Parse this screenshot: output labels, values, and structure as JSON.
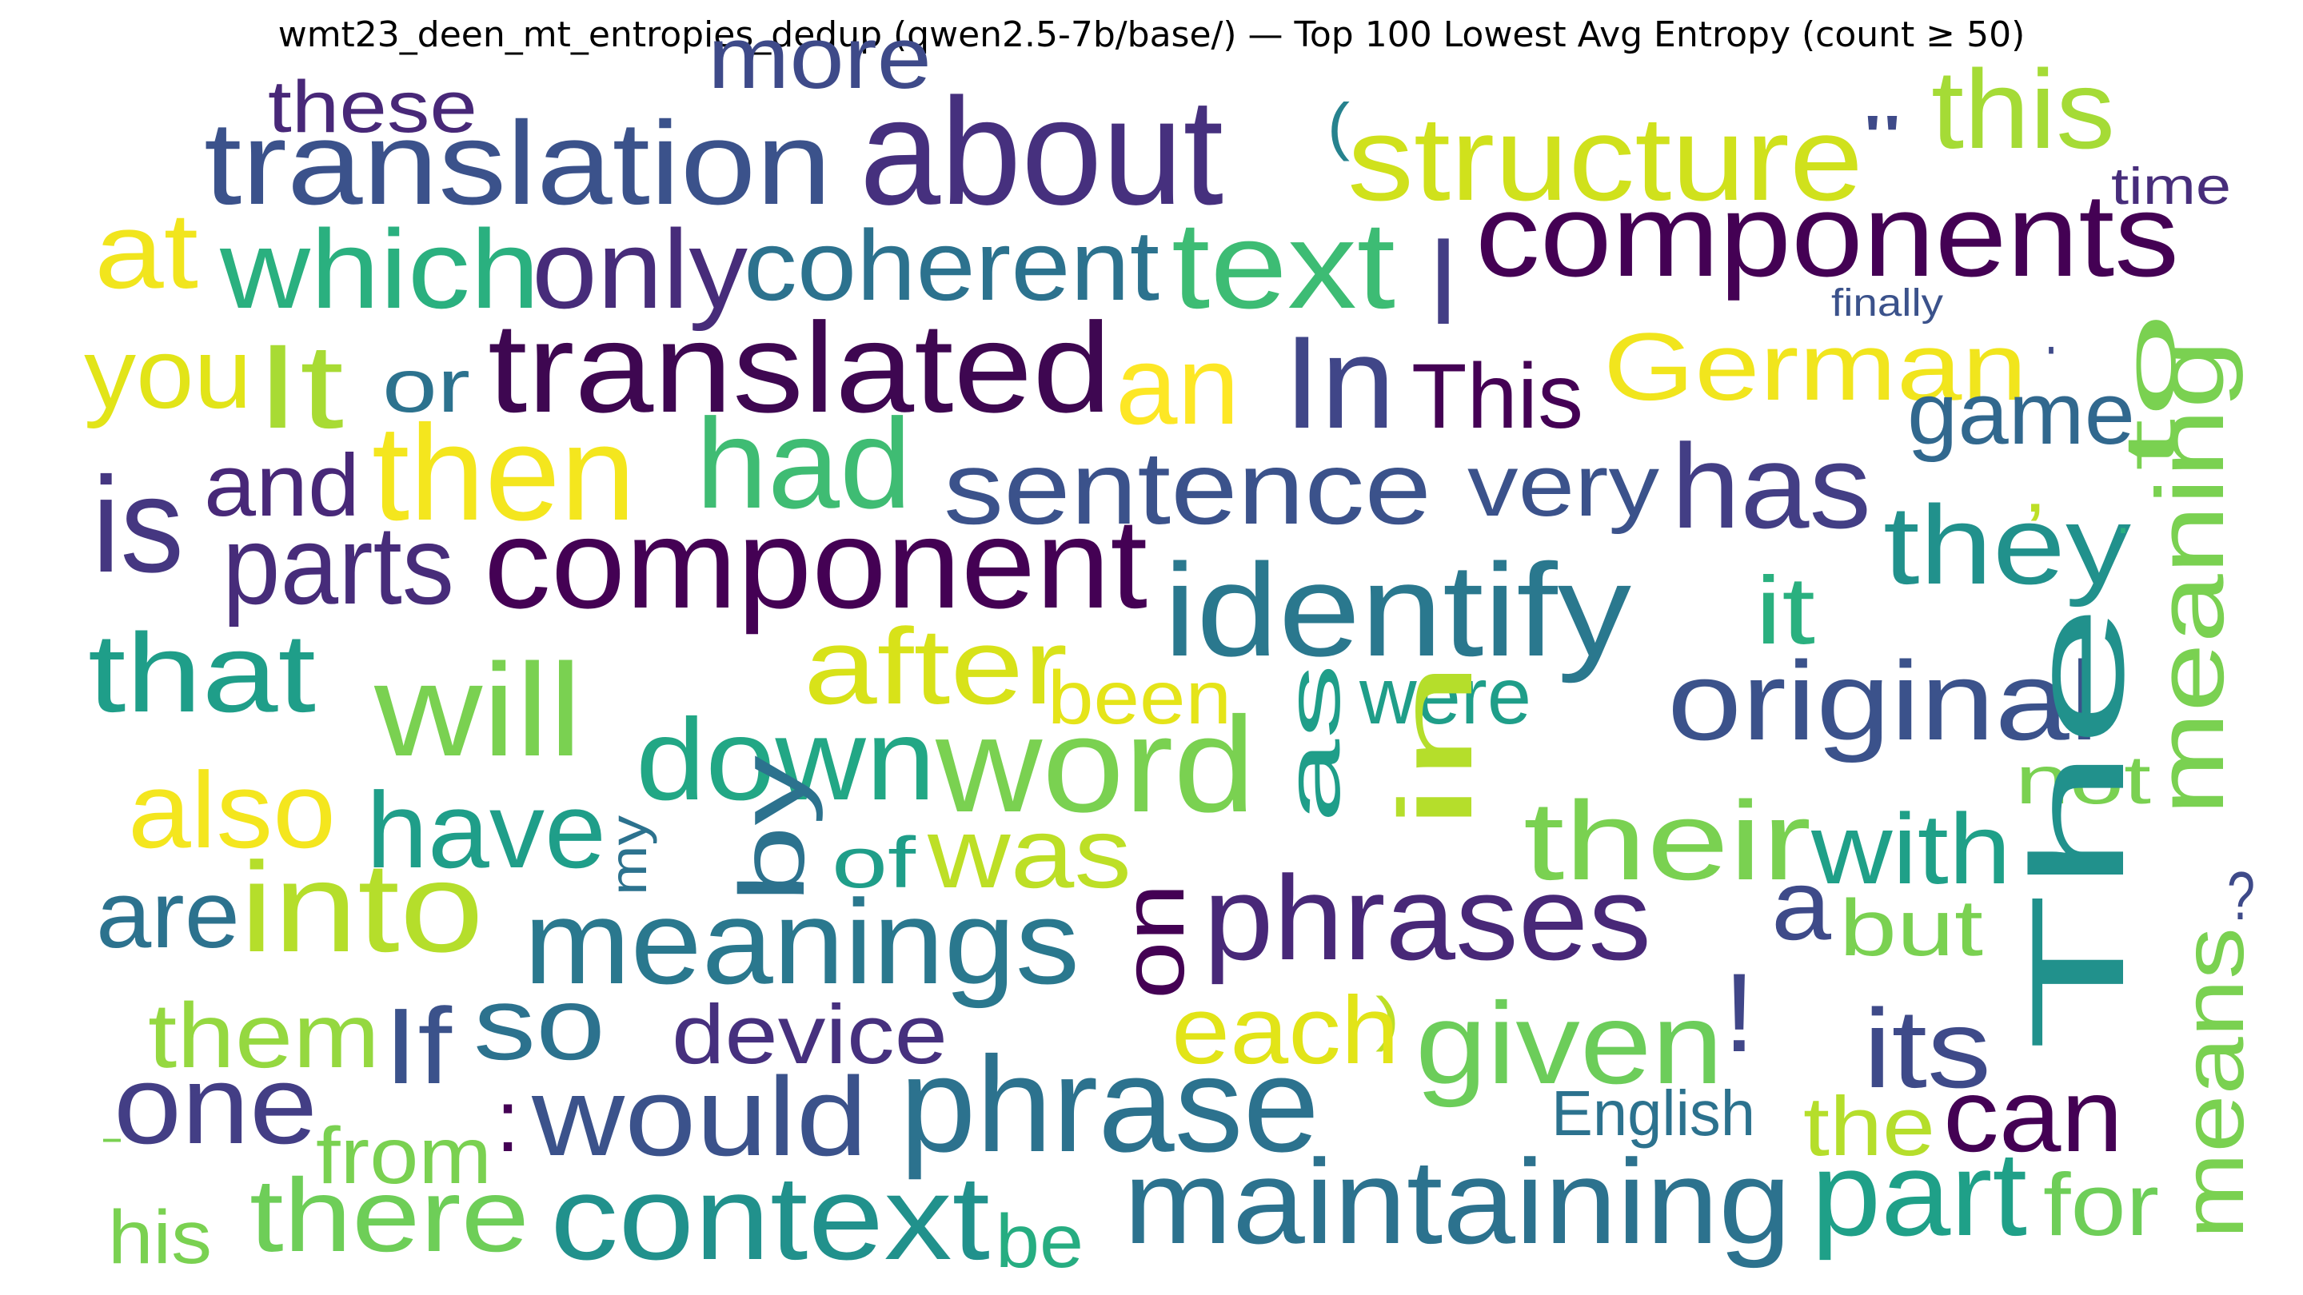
{
  "chart_data": {
    "type": "wordcloud",
    "title": "wmt23_deen_mt_entropies_dedup (qwen2.5-7b/base/) — Top 100 Lowest Avg Entropy (count ≥ 50)",
    "words": [
      {
        "text": "these",
        "color": "#482878"
      },
      {
        "text": "more",
        "color": "#3e4a89"
      },
      {
        "text": "(",
        "color": "#26828e"
      },
      {
        "text": "this",
        "color": "#a5db36"
      },
      {
        "text": "translation",
        "color": "#3b528b"
      },
      {
        "text": "about",
        "color": "#46307e"
      },
      {
        "text": "structure",
        "color": "#d0e11c"
      },
      {
        "text": "\"",
        "color": "#3e4a89"
      },
      {
        "text": "time",
        "color": "#472d7b"
      },
      {
        "text": "at",
        "color": "#f1e51d"
      },
      {
        "text": "which",
        "color": "#2ab07f"
      },
      {
        "text": "only",
        "color": "#472c7a"
      },
      {
        "text": "coherent",
        "color": "#2c728e"
      },
      {
        "text": "text",
        "color": "#3dbc74"
      },
      {
        "text": "I",
        "color": "#433e85"
      },
      {
        "text": "components",
        "color": "#440154"
      },
      {
        "text": "finally",
        "color": "#3b528b"
      },
      {
        "text": "you",
        "color": "#e2e418"
      },
      {
        "text": "It",
        "color": "#a8db34"
      },
      {
        "text": "or",
        "color": "#2c728e"
      },
      {
        "text": "translated",
        "color": "#3e0751"
      },
      {
        "text": "an",
        "color": "#fde725"
      },
      {
        "text": "In",
        "color": "#404688"
      },
      {
        "text": "This",
        "color": "#440154"
      },
      {
        "text": "German",
        "color": "#f1e51d"
      },
      {
        "text": "·",
        "color": "#3e4a89"
      },
      {
        "text": "to",
        "color": "#7ad151"
      },
      {
        "text": "game",
        "color": "#31688e"
      },
      {
        "text": "is",
        "color": "#453781"
      },
      {
        "text": "and",
        "color": "#482878"
      },
      {
        "text": "then",
        "color": "#f4e61e"
      },
      {
        "text": "had",
        "color": "#3fbc73"
      },
      {
        "text": "sentence",
        "color": "#3b528b"
      },
      {
        "text": "very",
        "color": "#3b528b"
      },
      {
        "text": "has",
        "color": "#433e85"
      },
      {
        "text": ",",
        "color": "#bddf26"
      },
      {
        "text": "meaning",
        "color": "#7ad151"
      },
      {
        "text": "they",
        "color": "#21918c"
      },
      {
        "text": "parts",
        "color": "#472c7a"
      },
      {
        "text": "component",
        "color": "#440154"
      },
      {
        "text": "identify",
        "color": "#2a788e"
      },
      {
        "text": "it",
        "color": "#2ab07f"
      },
      {
        "text": "·",
        "color": "#2ab07f"
      },
      {
        "text": "that",
        "color": "#1f9e89"
      },
      {
        "text": "after",
        "color": "#d8e219"
      },
      {
        "text": "been",
        "color": "#e5e419"
      },
      {
        "text": "will",
        "color": "#7ad151"
      },
      {
        "text": "were",
        "color": "#1f9e89"
      },
      {
        "text": "original",
        "color": "#3b528b"
      },
      {
        "text": "down",
        "color": "#22a785"
      },
      {
        "text": "word",
        "color": "#7ad151"
      },
      {
        "text": "as",
        "color": "#1f9e89"
      },
      {
        "text": "in",
        "color": "#b5de2b"
      },
      {
        "text": "also",
        "color": "#f4e61e"
      },
      {
        "text": "have",
        "color": "#1f9e89"
      },
      {
        "text": "their",
        "color": "#7ad151"
      },
      {
        "text": "not",
        "color": "#7ad151"
      },
      {
        "text": "with",
        "color": "#1fa088"
      },
      {
        "text": "The",
        "color": "#21918c"
      },
      {
        "text": "my",
        "color": "#2c728e"
      },
      {
        "text": "by",
        "color": "#2c728e"
      },
      {
        "text": "of",
        "color": "#1f9e89"
      },
      {
        "text": "was",
        "color": "#bddf26"
      },
      {
        "text": "are",
        "color": "#2c728e"
      },
      {
        "text": "into",
        "color": "#b5de2b"
      },
      {
        "text": "meanings",
        "color": "#2a788e"
      },
      {
        "text": "on",
        "color": "#440154"
      },
      {
        "text": "phrases",
        "color": "#482878"
      },
      {
        "text": "a",
        "color": "#3e4a89"
      },
      {
        "text": "but",
        "color": "#7ad151"
      },
      {
        "text": "?",
        "color": "#3e4a89"
      },
      {
        "text": "means",
        "color": "#7ad151"
      },
      {
        "text": "them",
        "color": "#95d840"
      },
      {
        "text": "If",
        "color": "#3b528b"
      },
      {
        "text": "so",
        "color": "#2c728e"
      },
      {
        "text": "device",
        "color": "#46307e"
      },
      {
        "text": ")",
        "color": "#bddf26"
      },
      {
        "text": "each",
        "color": "#e2e418"
      },
      {
        "text": "given",
        "color": "#6ccd5a"
      },
      {
        "text": "!",
        "color": "#404688"
      },
      {
        "text": "its",
        "color": "#3e4a89"
      },
      {
        "text": "one",
        "color": "#433e85"
      },
      {
        "text": ":",
        "color": "#440154"
      },
      {
        "text": "would",
        "color": "#3b528b"
      },
      {
        "text": "phrase",
        "color": "#2c728e"
      },
      {
        "text": "English",
        "color": "#2c728e"
      },
      {
        "text": "can",
        "color": "#440154"
      },
      {
        "text": "-",
        "color": "#7ad151"
      },
      {
        "text": "from",
        "color": "#7ad151"
      },
      {
        "text": "the",
        "color": "#b5de2b"
      },
      {
        "text": "there",
        "color": "#6ece58"
      },
      {
        "text": "context",
        "color": "#21918c"
      },
      {
        "text": "maintaining",
        "color": "#2c728e"
      },
      {
        "text": "part",
        "color": "#1fa088"
      },
      {
        "text": "for",
        "color": "#6ece58"
      },
      {
        "text": "his",
        "color": "#7ad151"
      },
      {
        "text": "be",
        "color": "#26ad81"
      }
    ]
  }
}
